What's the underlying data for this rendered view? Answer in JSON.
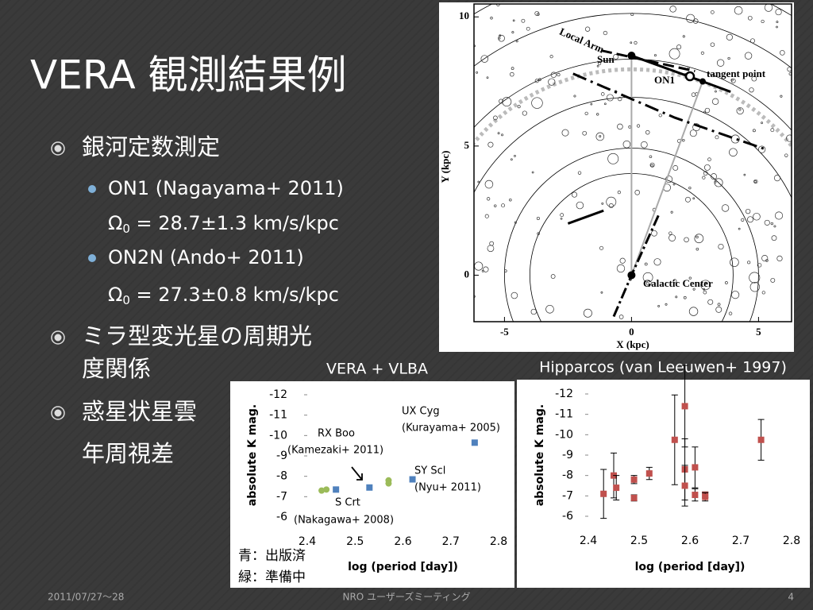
{
  "slide": {
    "title": "VERA 観測結果例",
    "bullets": [
      {
        "text": "銀河定数測定",
        "sub": [
          {
            "text": "ON1 (Nagayama+ 2011)",
            "omega": [
              "Ω",
              "0",
              " = 28.7±1.3 km/s/kpc"
            ]
          },
          {
            "text": "ON2N (Ando+ 2011)",
            "omega": [
              "Ω",
              "0",
              " = 27.3±0.8 km/s/kpc"
            ]
          }
        ]
      },
      {
        "lines": [
          "ミラ型変光星の周期光",
          "度関係"
        ]
      },
      {
        "lines": [
          "惑星状星雲",
          "年周視差"
        ]
      }
    ],
    "footer": {
      "date": "2011/07/27～28",
      "event": "NRO ユーザーズミーティング",
      "page": "4"
    }
  },
  "galaxy_map": {
    "xlabel": "X (kpc)",
    "ylabel": "Y (kpc)",
    "xlim": [
      -6.2,
      6.3
    ],
    "ylim": [
      -1.8,
      10.5
    ],
    "xticks": [
      -5,
      0,
      5
    ],
    "yticks": [
      10,
      5,
      0
    ],
    "labels": {
      "arm": "Local Arm",
      "sun": "Sun",
      "source": "ON1",
      "tangent": "tangent point",
      "center": "Galactic Center"
    }
  },
  "chart_data": [
    {
      "type": "scatter",
      "title": "VERA + VLBA",
      "xlabel": "log (period [day])",
      "ylabel": "absolute K mag.",
      "xlim": [
        2.4,
        2.8
      ],
      "ylim": [
        -6,
        -12
      ],
      "xticks": [
        2.4,
        2.5,
        2.6,
        2.7,
        2.8
      ],
      "yticks": [
        -12,
        -11,
        -10,
        -9,
        -8,
        -7,
        -6
      ],
      "series": [
        {
          "name": "青：出版済",
          "color": "#4f81bd",
          "marker": "square",
          "x": [
            2.46,
            2.53,
            2.62,
            2.75
          ],
          "values": [
            -7.35,
            -7.45,
            -7.85,
            -9.65
          ]
        },
        {
          "name": "緑：準備中",
          "color": "#9bbb59",
          "marker": "circle",
          "x": [
            2.43,
            2.44,
            2.57,
            2.57
          ],
          "values": [
            -7.3,
            -7.35,
            -7.65,
            -7.8
          ]
        }
      ],
      "annotations": [
        "UX Cyg",
        "(Kurayama+ 2005)",
        "RX Boo",
        "(Kamezaki+ 2011)",
        "SY Scl",
        "(Nyu+ 2011)",
        "S Crt",
        "(Nakagawa+ 2008)"
      ]
    },
    {
      "type": "scatter",
      "title": "Hipparcos (van Leeuwen+ 1997)",
      "xlabel": "log (period [day])",
      "ylabel": "absolute K mag.",
      "xlim": [
        2.4,
        2.8
      ],
      "ylim": [
        -6,
        -12
      ],
      "xticks": [
        2.4,
        2.5,
        2.6,
        2.7,
        2.8
      ],
      "yticks": [
        -12,
        -11,
        -10,
        -9,
        -8,
        -7,
        -6
      ],
      "series": [
        {
          "color": "#c0504d",
          "marker": "square",
          "x": [
            2.43,
            2.45,
            2.455,
            2.49,
            2.49,
            2.52,
            2.57,
            2.59,
            2.59,
            2.59,
            2.61,
            2.61,
            2.63,
            2.63,
            2.74
          ],
          "values": [
            -7.1,
            -8.0,
            -7.4,
            -7.8,
            -6.9,
            -8.1,
            -9.75,
            -11.4,
            -8.3,
            -7.5,
            -8.4,
            -7.05,
            -7.05,
            -6.95,
            -9.75
          ],
          "errors": [
            1.2,
            1.1,
            0.6,
            0.2,
            0.15,
            0.3,
            2.2,
            2.0,
            1.5,
            1.0,
            1.0,
            0.3,
            0.15,
            0.2,
            1.0
          ]
        }
      ]
    }
  ]
}
